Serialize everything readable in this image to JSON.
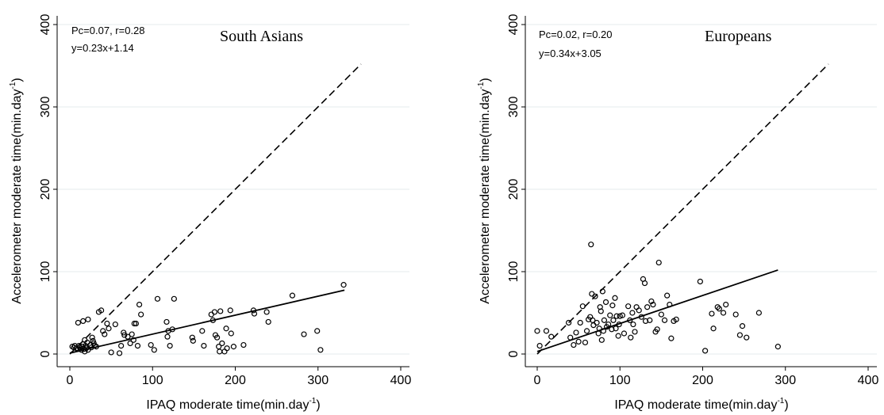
{
  "chart_data": [
    {
      "type": "scatter",
      "title": "South Asians",
      "stats_line1": "Pc=0.07, r=0.28",
      "stats_line2": "y=0.23x+1.14",
      "xlabel": "IPAQ moderate time(min.day",
      "ylabel": "Accelerometer moderate time(min.day",
      "unit_superscript": "-1",
      "unit_close": ")",
      "xlim": [
        0,
        400
      ],
      "ylim": [
        0,
        400
      ],
      "xticks": [
        "0",
        "100",
        "200",
        "300",
        "400"
      ],
      "yticks": [
        "0",
        "100",
        "200",
        "300",
        "400"
      ],
      "grid": "horizontal",
      "identity_line": {
        "x": [
          0,
          352
        ],
        "y": [
          0,
          352
        ],
        "style": "dashed"
      },
      "fit_line": {
        "x": [
          0,
          332
        ],
        "y": [
          1.14,
          77.5
        ],
        "style": "solid"
      },
      "points": [
        [
          3,
          9
        ],
        [
          5,
          8
        ],
        [
          6,
          10
        ],
        [
          8,
          7
        ],
        [
          10,
          6
        ],
        [
          11,
          10
        ],
        [
          12,
          8
        ],
        [
          14,
          5
        ],
        [
          15,
          9
        ],
        [
          16,
          12
        ],
        [
          17,
          6
        ],
        [
          18,
          3
        ],
        [
          18,
          17
        ],
        [
          19,
          10
        ],
        [
          20,
          7
        ],
        [
          21,
          14
        ],
        [
          22,
          5
        ],
        [
          25,
          11
        ],
        [
          26,
          8
        ],
        [
          27,
          20
        ],
        [
          28,
          16
        ],
        [
          29,
          13
        ],
        [
          30,
          10
        ],
        [
          32,
          9
        ],
        [
          10,
          38
        ],
        [
          16,
          40
        ],
        [
          22,
          42
        ],
        [
          35,
          51
        ],
        [
          38,
          53
        ],
        [
          40,
          28
        ],
        [
          42,
          24
        ],
        [
          45,
          37
        ],
        [
          47,
          31
        ],
        [
          50,
          2
        ],
        [
          55,
          36
        ],
        [
          60,
          1
        ],
        [
          62,
          10
        ],
        [
          65,
          26
        ],
        [
          66,
          23
        ],
        [
          70,
          21
        ],
        [
          73,
          13
        ],
        [
          75,
          24
        ],
        [
          77,
          17
        ],
        [
          78,
          37
        ],
        [
          80,
          37
        ],
        [
          82,
          10
        ],
        [
          84,
          60
        ],
        [
          86,
          48
        ],
        [
          98,
          11
        ],
        [
          102,
          5
        ],
        [
          106,
          67
        ],
        [
          117,
          39
        ],
        [
          118,
          21
        ],
        [
          119,
          28
        ],
        [
          121,
          10
        ],
        [
          124,
          30
        ],
        [
          126,
          67
        ],
        [
          148,
          20
        ],
        [
          149,
          16
        ],
        [
          160,
          28
        ],
        [
          162,
          10
        ],
        [
          171,
          48
        ],
        [
          173,
          41
        ],
        [
          175,
          51
        ],
        [
          176,
          23
        ],
        [
          178,
          20
        ],
        [
          180,
          9
        ],
        [
          181,
          3
        ],
        [
          182,
          52
        ],
        [
          184,
          13
        ],
        [
          187,
          3
        ],
        [
          189,
          31
        ],
        [
          190,
          7
        ],
        [
          195,
          25
        ],
        [
          194,
          53
        ],
        [
          198,
          9
        ],
        [
          210,
          11
        ],
        [
          222,
          53
        ],
        [
          223,
          49
        ],
        [
          238,
          51
        ],
        [
          240,
          39
        ],
        [
          269,
          71
        ],
        [
          283,
          24
        ],
        [
          299,
          28
        ],
        [
          303,
          5
        ],
        [
          331,
          84
        ]
      ]
    },
    {
      "type": "scatter",
      "title": "Europeans",
      "stats_line1": "Pc=0.02, r=0.20",
      "stats_line2": "y=0.34x+3.05",
      "xlabel": "IPAQ moderate time(min.day",
      "ylabel": "Accelerometer moderate time(min.day",
      "unit_superscript": "-1",
      "unit_close": ")",
      "xlim": [
        0,
        400
      ],
      "ylim": [
        0,
        400
      ],
      "xticks": [
        "0",
        "100",
        "200",
        "300",
        "400"
      ],
      "yticks": [
        "0",
        "100",
        "200",
        "300",
        "400"
      ],
      "grid": "horizontal",
      "identity_line": {
        "x": [
          0,
          352
        ],
        "y": [
          0,
          352
        ],
        "style": "dashed"
      },
      "fit_line": {
        "x": [
          0,
          291
        ],
        "y": [
          3.05,
          102
        ],
        "style": "solid"
      },
      "points": [
        [
          0,
          28
        ],
        [
          3,
          10
        ],
        [
          11,
          28
        ],
        [
          17,
          21
        ],
        [
          38,
          38
        ],
        [
          40,
          20
        ],
        [
          44,
          11
        ],
        [
          47,
          26
        ],
        [
          50,
          15
        ],
        [
          52,
          38
        ],
        [
          55,
          58
        ],
        [
          58,
          14
        ],
        [
          60,
          28
        ],
        [
          62,
          42
        ],
        [
          64,
          45
        ],
        [
          65,
          133
        ],
        [
          66,
          73
        ],
        [
          67,
          41
        ],
        [
          68,
          35
        ],
        [
          70,
          70
        ],
        [
          72,
          38
        ],
        [
          74,
          25
        ],
        [
          75,
          31
        ],
        [
          76,
          57
        ],
        [
          77,
          52
        ],
        [
          78,
          17
        ],
        [
          79,
          76
        ],
        [
          80,
          28
        ],
        [
          81,
          41
        ],
        [
          83,
          63
        ],
        [
          84,
          33
        ],
        [
          86,
          36
        ],
        [
          88,
          47
        ],
        [
          90,
          30
        ],
        [
          91,
          59
        ],
        [
          92,
          41
        ],
        [
          94,
          68
        ],
        [
          95,
          31
        ],
        [
          96,
          46
        ],
        [
          98,
          22
        ],
        [
          99,
          36
        ],
        [
          100,
          46
        ],
        [
          103,
          47
        ],
        [
          105,
          25
        ],
        [
          110,
          58
        ],
        [
          112,
          41
        ],
        [
          113,
          20
        ],
        [
          115,
          50
        ],
        [
          116,
          36
        ],
        [
          118,
          27
        ],
        [
          120,
          57
        ],
        [
          123,
          53
        ],
        [
          126,
          45
        ],
        [
          128,
          91
        ],
        [
          130,
          86
        ],
        [
          131,
          40
        ],
        [
          133,
          57
        ],
        [
          136,
          41
        ],
        [
          138,
          64
        ],
        [
          140,
          60
        ],
        [
          143,
          27
        ],
        [
          145,
          30
        ],
        [
          147,
          111
        ],
        [
          150,
          48
        ],
        [
          154,
          41
        ],
        [
          157,
          71
        ],
        [
          160,
          60
        ],
        [
          162,
          19
        ],
        [
          165,
          40
        ],
        [
          168,
          42
        ],
        [
          197,
          88
        ],
        [
          203,
          4
        ],
        [
          211,
          49
        ],
        [
          213,
          31
        ],
        [
          218,
          57
        ],
        [
          220,
          55
        ],
        [
          225,
          50
        ],
        [
          228,
          60
        ],
        [
          240,
          48
        ],
        [
          245,
          23
        ],
        [
          248,
          34
        ],
        [
          253,
          20
        ],
        [
          268,
          50
        ],
        [
          291,
          9
        ]
      ]
    }
  ]
}
